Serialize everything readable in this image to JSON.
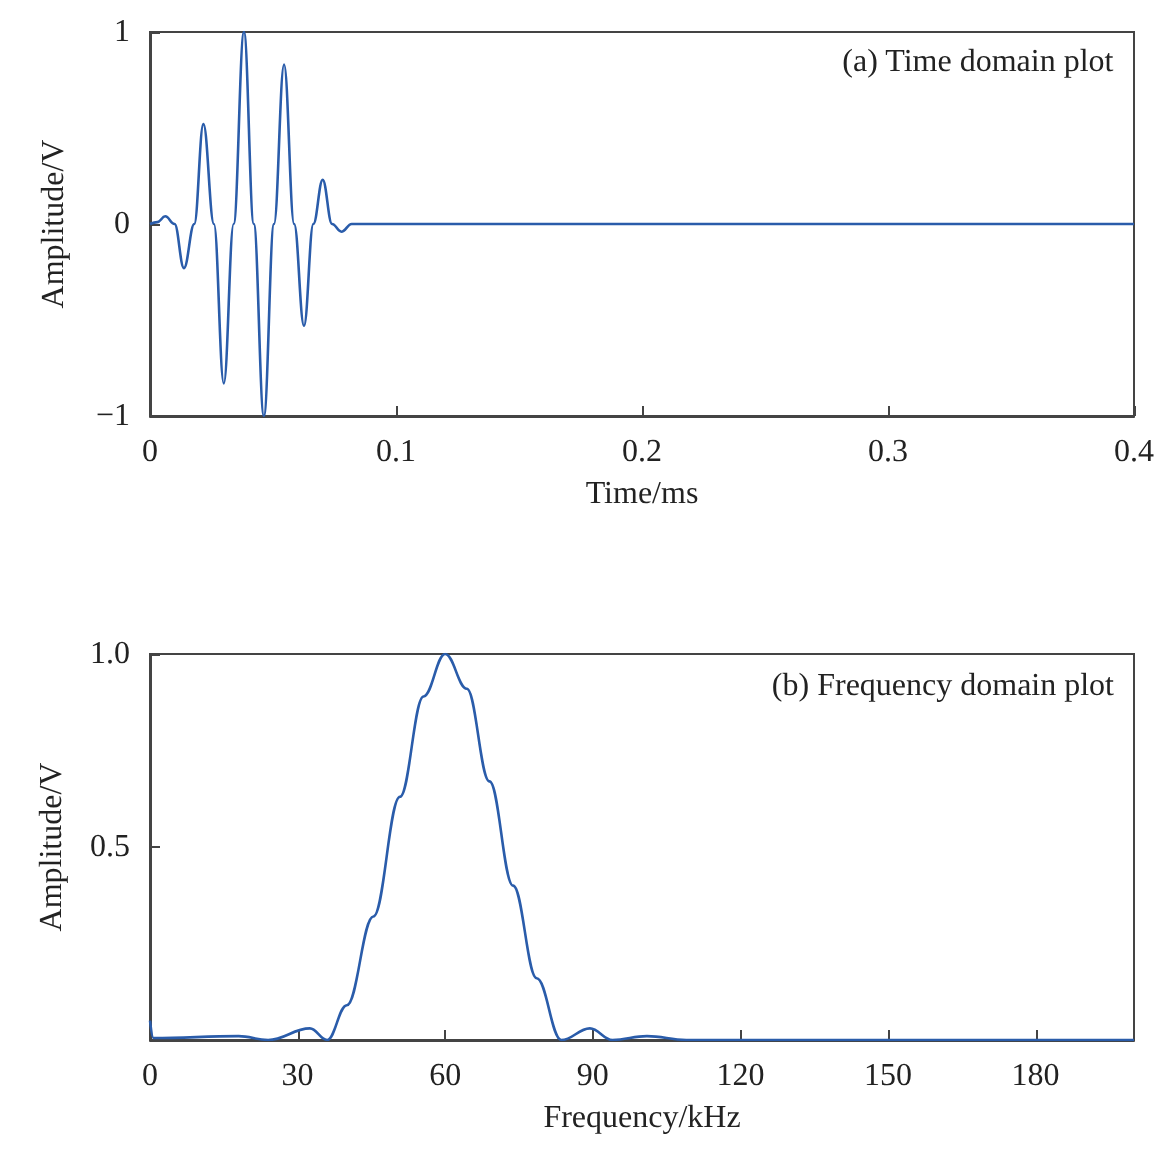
{
  "chart_data": [
    {
      "type": "line",
      "xlabel": "Time/ms",
      "ylabel": "Amplitude/V",
      "annotations": [
        "(a) Time domain plot"
      ],
      "xlim": [
        0,
        0.4
      ],
      "ylim": [
        -1,
        1
      ],
      "xticks": [
        0,
        0.1,
        0.2,
        0.3,
        0.4
      ],
      "yticks": [
        {
          "value": -1,
          "label": "−1"
        },
        0,
        1
      ],
      "marker": "none",
      "line_style": "solid",
      "series": [
        {
          "color": "#2a5caa",
          "x": [
            0,
            0.003,
            0.0062,
            0.01,
            0.0138,
            0.018,
            0.0217,
            0.026,
            0.03,
            0.034,
            0.0382,
            0.0422,
            0.0463,
            0.0504,
            0.0545,
            0.0586,
            0.0626,
            0.0664,
            0.0702,
            0.074,
            0.0778,
            0.082,
            0.1,
            0.2,
            0.3,
            0.4
          ],
          "values": [
            0,
            0.01,
            0.04,
            0,
            -0.23,
            0,
            0.52,
            0,
            -0.83,
            0,
            1,
            0,
            -1,
            0,
            0.83,
            0,
            -0.53,
            0,
            0.23,
            0,
            -0.04,
            0,
            0,
            0,
            0,
            0
          ]
        }
      ]
    },
    {
      "type": "line",
      "xlabel": "Frequency/kHz",
      "ylabel": "Amplitude/V",
      "annotations": [
        "(b) Frequency domain plot"
      ],
      "xlim": [
        0,
        200
      ],
      "ylim": [
        0,
        1
      ],
      "xticks": [
        0,
        30,
        60,
        90,
        120,
        150,
        180
      ],
      "yticks": [
        {
          "value": 0.5,
          "label": "0.5"
        },
        {
          "value": 1,
          "label": "1.0"
        }
      ],
      "marker": "none",
      "line_style": "solid",
      "series": [
        {
          "color": "#2a5caa",
          "x": [
            0,
            0.7,
            18,
            24,
            32.5,
            36,
            40,
            45.4,
            50.8,
            55.6,
            60,
            64.4,
            69,
            73.8,
            78.6,
            83.6,
            89.4,
            94,
            101,
            109,
            150,
            200
          ],
          "values": [
            0.05,
            0.005,
            0.01,
            0,
            0.03,
            0,
            0.09,
            0.32,
            0.63,
            0.89,
            1,
            0.91,
            0.67,
            0.4,
            0.16,
            0,
            0.03,
            0,
            0.01,
            0,
            0,
            0
          ]
        }
      ]
    }
  ]
}
